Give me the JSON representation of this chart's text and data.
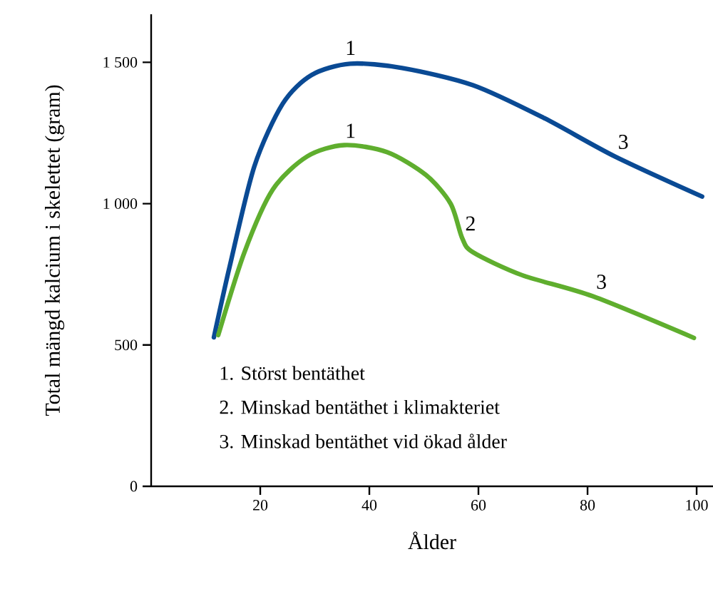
{
  "chart_data": {
    "type": "line",
    "xlabel": "Ålder",
    "ylabel": "Total mängd kalcium i skelettet (gram)",
    "xlim": [
      0,
      103
    ],
    "ylim": [
      0,
      1670
    ],
    "xticks": [
      20,
      40,
      60,
      80,
      100
    ],
    "yticks": [
      0,
      500,
      {
        "value": 1000,
        "label": "1 000"
      },
      {
        "value": 1500,
        "label": "1 500"
      }
    ],
    "grid": false,
    "marker": "none",
    "line_style": "solid",
    "series": [
      {
        "color": "#0a4a94",
        "x": [
          11.5,
          14.4,
          18.9,
          24.1,
          29.4,
          36.5,
          46,
          59,
          72,
          85,
          101
        ],
        "values": [
          527,
          778,
          1131,
          1353,
          1455,
          1495,
          1480,
          1419,
          1303,
          1167,
          1025
        ]
      },
      {
        "color": "#5fae2e",
        "x": [
          12.3,
          17.1,
          22.3,
          28.6,
          35.4,
          43.3,
          50.4,
          54.9,
          57,
          59,
          68,
          81,
          99.5
        ],
        "values": [
          535,
          828,
          1050,
          1167,
          1207,
          1182,
          1101,
          1000,
          879,
          828,
          747,
          672,
          525
        ]
      }
    ],
    "annotations": [
      {
        "text": "1",
        "x": 35,
        "y": 1500
      },
      {
        "text": "3",
        "x": 85,
        "y": 1167
      },
      {
        "text": "1",
        "x": 35,
        "y": 1207
      },
      {
        "text": "2",
        "x": 57,
        "y": 879
      },
      {
        "text": "3",
        "x": 81,
        "y": 672
      },
      "1.  Störst bentäthet",
      "2. Minskad bentäthet i klimakteriet",
      "3. Minskad bentäthet vid ökad ålder"
    ]
  }
}
